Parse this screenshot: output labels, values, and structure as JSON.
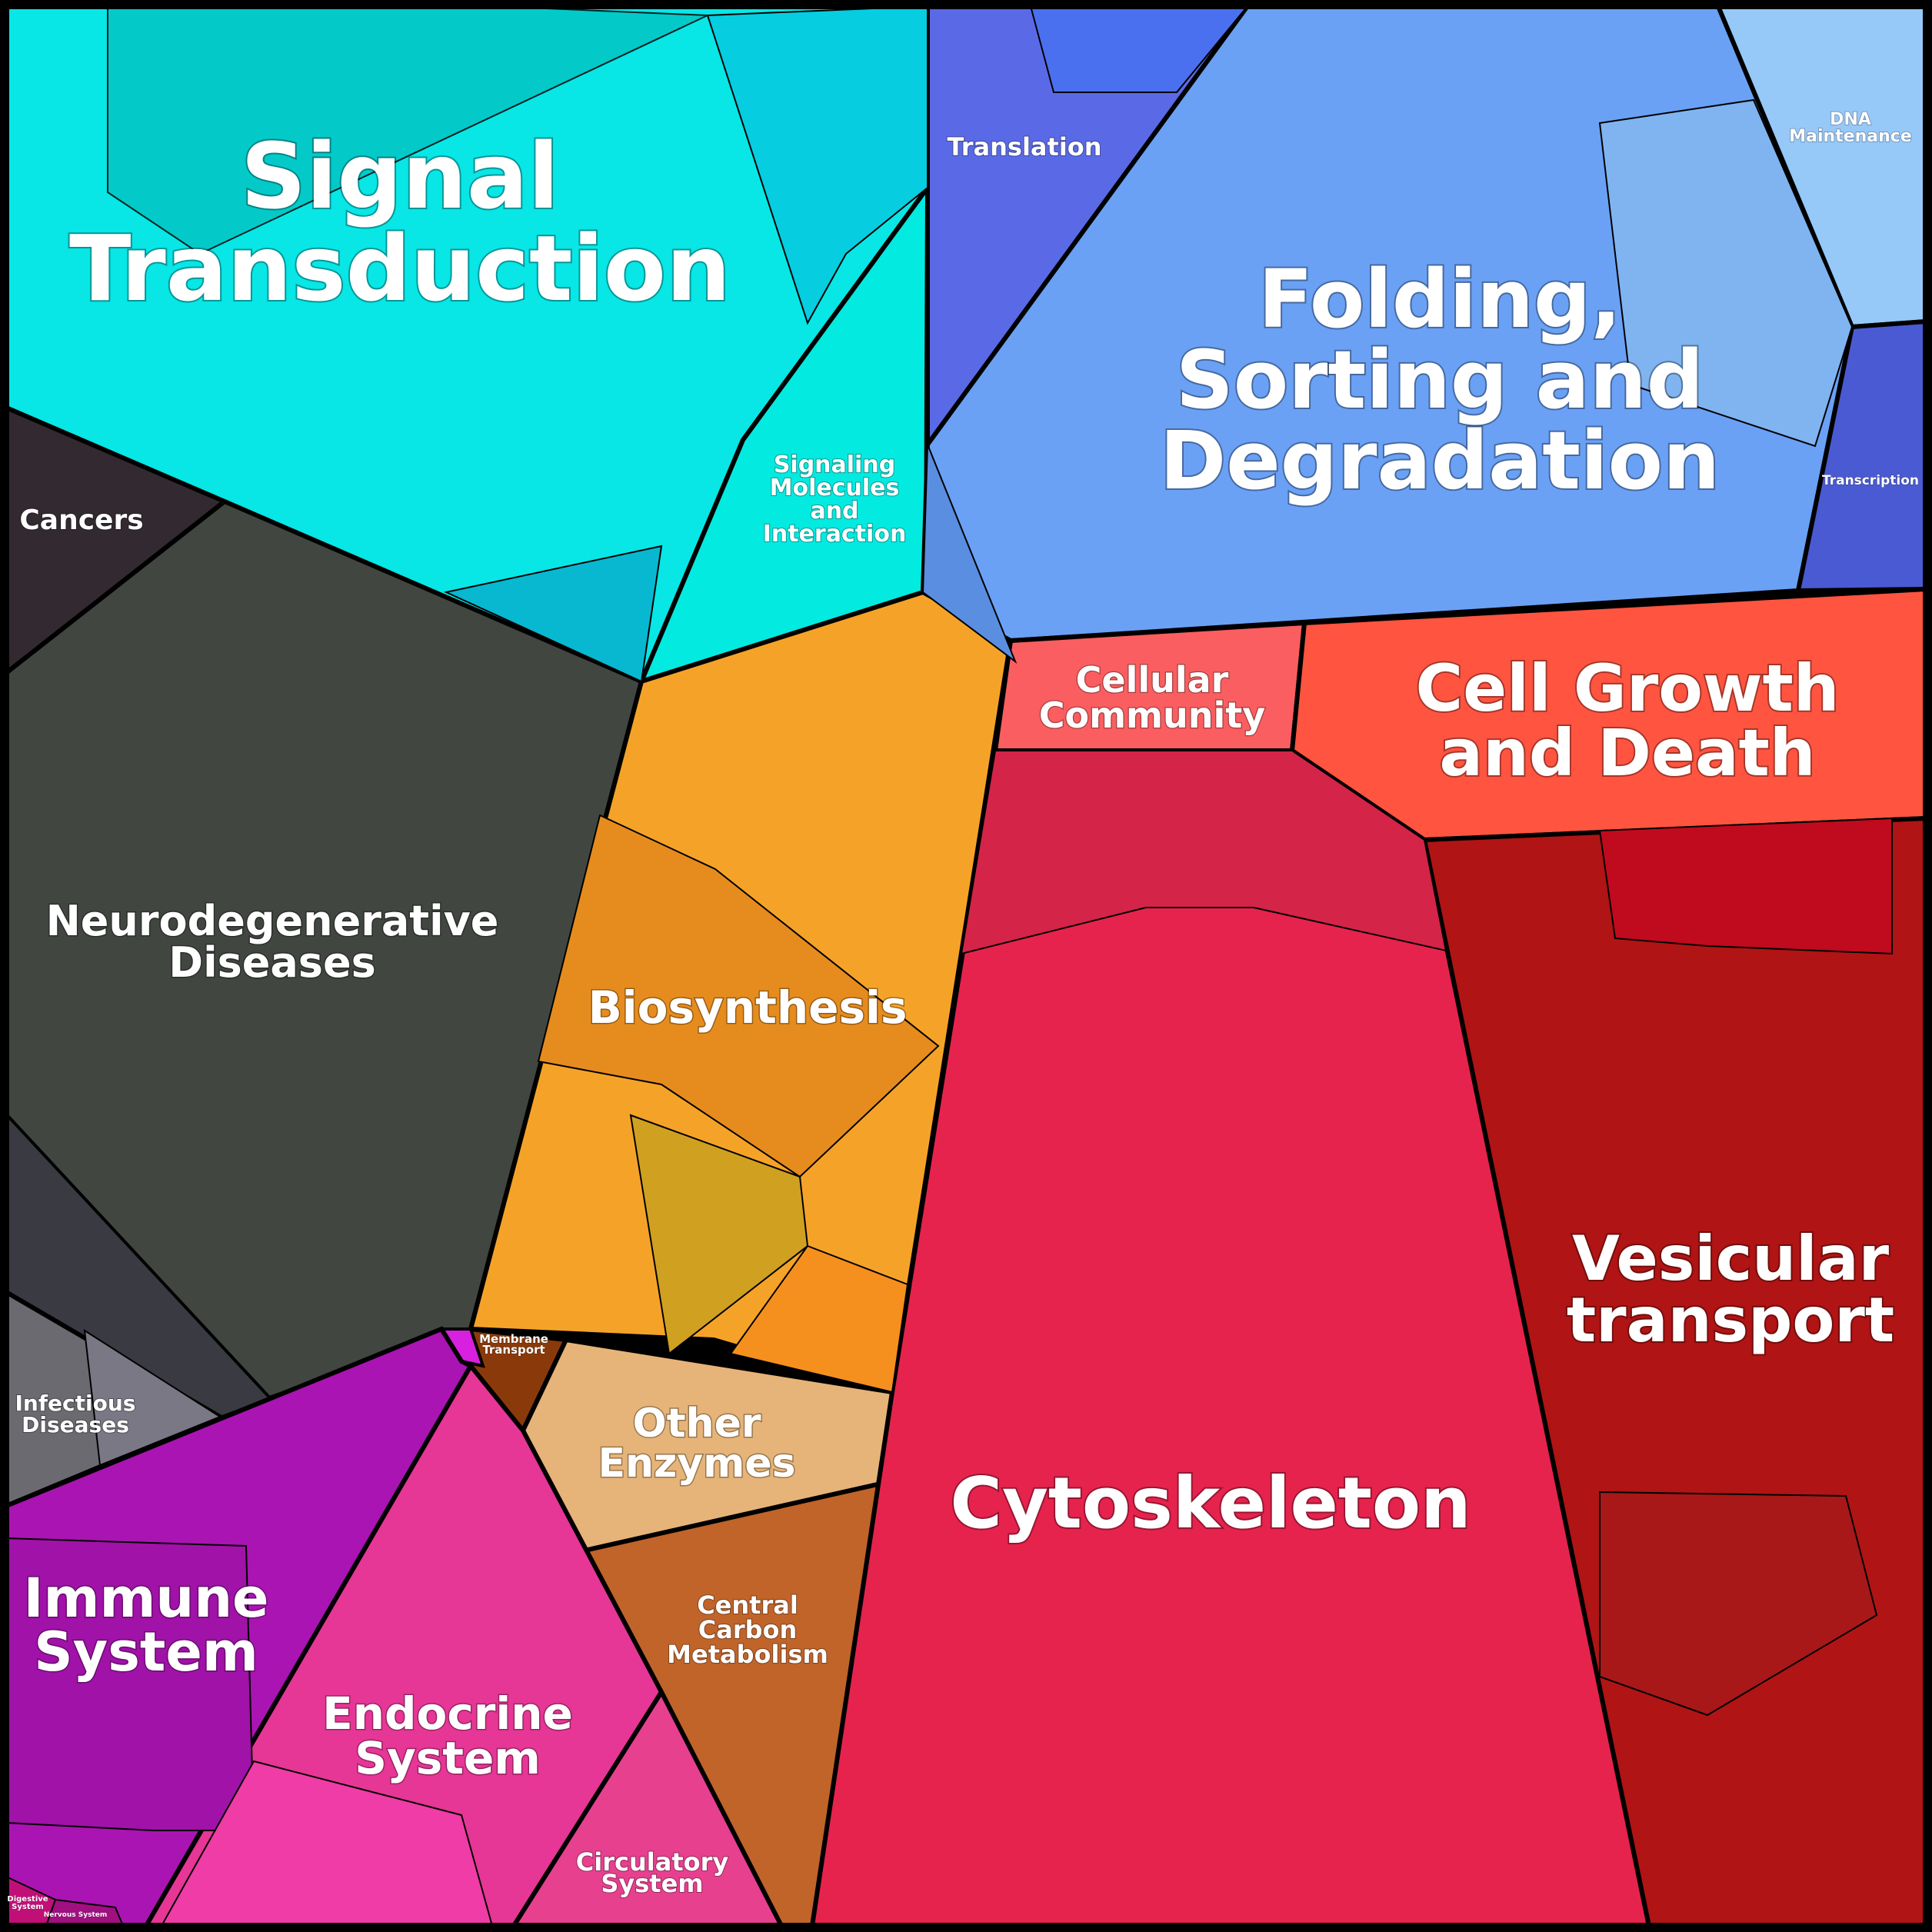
{
  "chart_data": {
    "type": "voronoi-treemap",
    "title": "",
    "categories": [
      {
        "name": "Signal Transduction",
        "color": "#08e6e6"
      },
      {
        "name": "Signaling Molecules and Interaction",
        "color": "#03eae0"
      },
      {
        "name": "Cancers",
        "color": "#3a2a30"
      },
      {
        "name": "Neurodegenerative Diseases",
        "color": "#414641"
      },
      {
        "name": "Infectious Diseases",
        "color": "#6a6a70"
      },
      {
        "name": "Translation",
        "color": "#5a6ae6"
      },
      {
        "name": "Folding, Sorting and Degradation",
        "color": "#6aa1f5"
      },
      {
        "name": "DNA Maintenance",
        "color": "#96c8f8"
      },
      {
        "name": "Transcription",
        "color": "#4a5ad2"
      },
      {
        "name": "Biosynthesis",
        "color": "#f5a328"
      },
      {
        "name": "Membrane Transport",
        "color": "#8a3a0a"
      },
      {
        "name": "Other Enzymes",
        "color": "#e6b478"
      },
      {
        "name": "Central Carbon Metabolism",
        "color": "#c0642a"
      },
      {
        "name": "Cellular Community",
        "color": "#fa5e60"
      },
      {
        "name": "Cell Growth and Death",
        "color": "#ff5440"
      },
      {
        "name": "Cytoskeleton",
        "color": "#e6234d"
      },
      {
        "name": "Vesicular transport",
        "color": "#b01414"
      },
      {
        "name": "Immune System",
        "color": "#aa14b2"
      },
      {
        "name": "Endocrine System",
        "color": "#e63696"
      },
      {
        "name": "Circulatory System",
        "color": "#e6408f"
      },
      {
        "name": "Digestive System",
        "color": "#c01078"
      },
      {
        "name": "Nervous System",
        "color": "#a01080"
      }
    ]
  }
}
